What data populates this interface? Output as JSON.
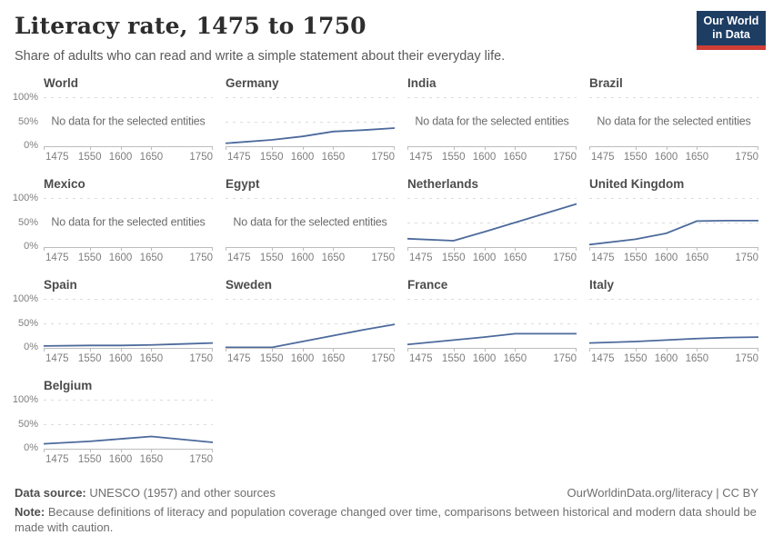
{
  "header": {
    "title": "Literacy rate, 1475 to 1750",
    "subtitle": "Share of adults who can read and write a simple statement about their everyday life.",
    "logo": {
      "line1": "Our World",
      "line2": "in Data"
    }
  },
  "chart_data": {
    "type": "line",
    "title": "Literacy rate, 1475 to 1750",
    "layout": "small-multiples, 4 columns",
    "x": [
      1475,
      1550,
      1600,
      1650,
      1700,
      1750
    ],
    "x_range": [
      1475,
      1750
    ],
    "x_tick_years": [
      1475,
      1550,
      1600,
      1650,
      1750
    ],
    "x_tick_labels": [
      "1475",
      "1550",
      "1600",
      "1650",
      "1750"
    ],
    "ylim": [
      0,
      100
    ],
    "y_tick_labels": [
      "100%",
      "50%",
      "0%"
    ],
    "unit": "%",
    "grid": "dashed horizontal gridlines at 50% and 100%, y labels only on first column",
    "legend_position": "none",
    "no_data_label": "No data for the selected entities",
    "panels": [
      {
        "title": "World",
        "no_data": true
      },
      {
        "title": "Germany",
        "values": [
          6,
          13,
          20,
          30,
          33,
          37
        ]
      },
      {
        "title": "India",
        "no_data": true
      },
      {
        "title": "Brazil",
        "no_data": true
      },
      {
        "title": "Mexico",
        "no_data": true
      },
      {
        "title": "Egypt",
        "no_data": true
      },
      {
        "title": "Netherlands",
        "values": [
          17,
          13,
          31,
          50,
          69,
          88
        ]
      },
      {
        "title": "United Kingdom",
        "values": [
          5,
          16,
          28,
          53,
          54,
          54
        ]
      },
      {
        "title": "Spain",
        "values": [
          4,
          5,
          5,
          6,
          8,
          10
        ]
      },
      {
        "title": "Sweden",
        "values": [
          1,
          1,
          13,
          25,
          37,
          48
        ]
      },
      {
        "title": "France",
        "values": [
          7,
          16,
          22,
          29,
          29,
          29
        ]
      },
      {
        "title": "Italy",
        "values": [
          10,
          13,
          16,
          19,
          21,
          22
        ]
      },
      {
        "title": "Belgium",
        "values": [
          10,
          15,
          20,
          25,
          19,
          13
        ]
      }
    ]
  },
  "footer": {
    "source_label": "Data source:",
    "source_text": "UNESCO (1957) and other sources",
    "link": "OurWorldinData.org/literacy | CC BY",
    "note_label": "Note:",
    "note_text": "Because definitions of literacy and population coverage changed over time, comparisons between historical and modern data should be made with caution."
  },
  "colors": {
    "line": "#4c6a9c",
    "logo_bg": "#1d3d63",
    "logo_stripe": "#cf3e36",
    "gridline": "#dcdcdc",
    "axis": "#bdbdbd",
    "muted_text": "#7e7e7e"
  }
}
